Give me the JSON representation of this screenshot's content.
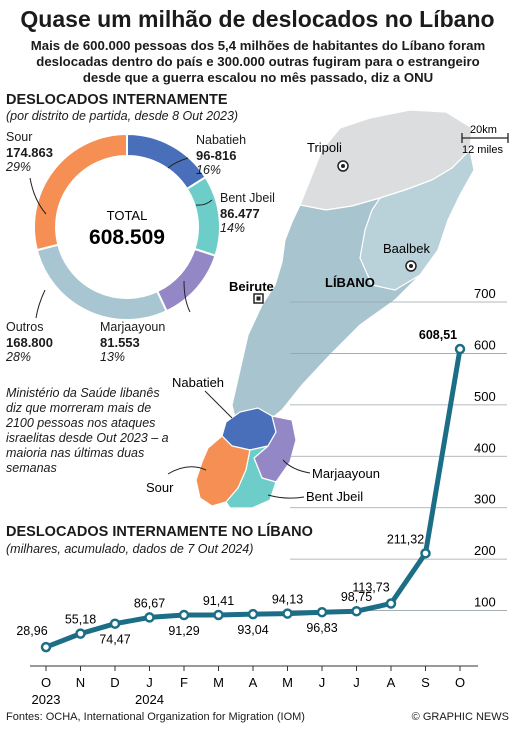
{
  "header": {
    "title": "Quase um milhão de deslocados no Líbano",
    "intro": "Mais de 600.000 pessoas dos 5,4 milhões de habitantes do Líbano foram deslocadas dentro do país e 300.000 outras fugiram para o estrangeiro desde que a guerra escalou no mês passado, diz a ONU"
  },
  "donut": {
    "heading": "DESLOCADOS INTERNAMENTE",
    "subheading": "(por distrito de partida, desde 8 Out 2023)",
    "total_label": "TOTAL",
    "total_value": "608.509",
    "slices": [
      {
        "name": "Nabatieh",
        "value": "96-816",
        "pct": "16%",
        "share": 16,
        "color": "#4a6fba"
      },
      {
        "name": "Bent Jbeil",
        "value": "86.477",
        "pct": "14%",
        "share": 14,
        "color": "#6dcdc8"
      },
      {
        "name": "Marjaayoun",
        "value": "81.553",
        "pct": "13%",
        "share": 13,
        "color": "#9487c6"
      },
      {
        "name": "Outros",
        "value": "168.800",
        "pct": "28%",
        "share": 28,
        "color": "#a7c6d1"
      },
      {
        "name": "Sour",
        "value": "174.863",
        "pct": "29%",
        "share": 29,
        "color": "#f58f53"
      }
    ]
  },
  "map": {
    "scale_km": "20km",
    "scale_miles": "12 miles",
    "country": "LÍBANO",
    "cities": [
      "Tripoli",
      "Baalbek",
      "Beirute"
    ],
    "districts": [
      "Nabatieh",
      "Marjaayoun",
      "Sour",
      "Bent Jbeil"
    ]
  },
  "note": "Ministério da Saúde libanês diz que morreram mais de 2100 pessoas nos ataques israelitas desde Out 2023 – a maioria nas últimas duas semanas",
  "chart_data": {
    "type": "line",
    "title": "DESLOCADOS INTERNAMENTE NO LÍBANO",
    "subtitle": "(milhares, acumulado, dados de 7 Out 2024)",
    "categories": [
      "O",
      "N",
      "D",
      "J",
      "F",
      "M",
      "A",
      "M",
      "J",
      "J",
      "A",
      "S",
      "O"
    ],
    "years": [
      "2023",
      "2024"
    ],
    "values": [
      28.96,
      55.18,
      74.47,
      86.67,
      91.29,
      91.41,
      93.04,
      94.13,
      96.83,
      98.75,
      113.73,
      211.32,
      608.51
    ],
    "value_labels": [
      "28,96",
      "55,18",
      "74,47",
      "86,67",
      "91,29",
      "91,41",
      "93,04",
      "94,13",
      "96,83",
      "98,75",
      "113,73",
      "211,32",
      "608,51"
    ],
    "label_pos": [
      "below",
      "above",
      "below",
      "above",
      "below",
      "above",
      "below",
      "above",
      "below",
      "above",
      "above",
      "above",
      "above"
    ],
    "yticks": [
      100,
      200,
      300,
      400,
      500,
      600,
      700
    ],
    "ylim": [
      0,
      700
    ],
    "line_color": "#1c6e87"
  },
  "footer": {
    "sources": "Fontes: OCHA, International Organization for Migration (IOM)",
    "credit": "© GRAPHIC NEWS"
  }
}
